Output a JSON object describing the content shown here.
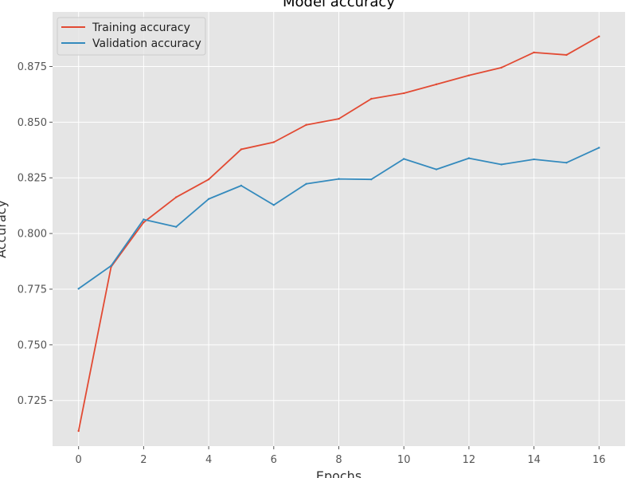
{
  "chart_data": {
    "type": "line",
    "title": "Model accuracy",
    "xlabel": "Epochs",
    "ylabel": "Accuracy",
    "xlim": [
      -0.8,
      16.8
    ],
    "ylim": [
      0.7045,
      0.8995
    ],
    "xticks": [
      0,
      2,
      4,
      6,
      8,
      10,
      12,
      14,
      16
    ],
    "yticks": [
      0.725,
      0.75,
      0.775,
      0.8,
      0.825,
      0.85,
      0.875
    ],
    "ytick_labels": [
      "0.725",
      "0.750",
      "0.775",
      "0.800",
      "0.825",
      "0.850",
      "0.875"
    ],
    "grid": true,
    "legend_position": "top-left",
    "x": [
      0,
      1,
      2,
      3,
      4,
      5,
      6,
      7,
      8,
      9,
      10,
      11,
      12,
      13,
      14,
      15,
      16
    ],
    "series": [
      {
        "name": "Training accuracy",
        "color": "#E24A33",
        "values": [
          0.7113,
          0.785,
          0.805,
          0.8163,
          0.8243,
          0.8378,
          0.841,
          0.8488,
          0.8515,
          0.8605,
          0.863,
          0.867,
          0.871,
          0.8745,
          0.8813,
          0.8802,
          0.8885
        ]
      },
      {
        "name": "Validation accuracy",
        "color": "#348ABD",
        "values": [
          0.7752,
          0.7855,
          0.8063,
          0.803,
          0.8155,
          0.8215,
          0.8128,
          0.8223,
          0.8245,
          0.8243,
          0.8335,
          0.8288,
          0.8338,
          0.831,
          0.8333,
          0.8318,
          0.8385
        ]
      }
    ]
  }
}
